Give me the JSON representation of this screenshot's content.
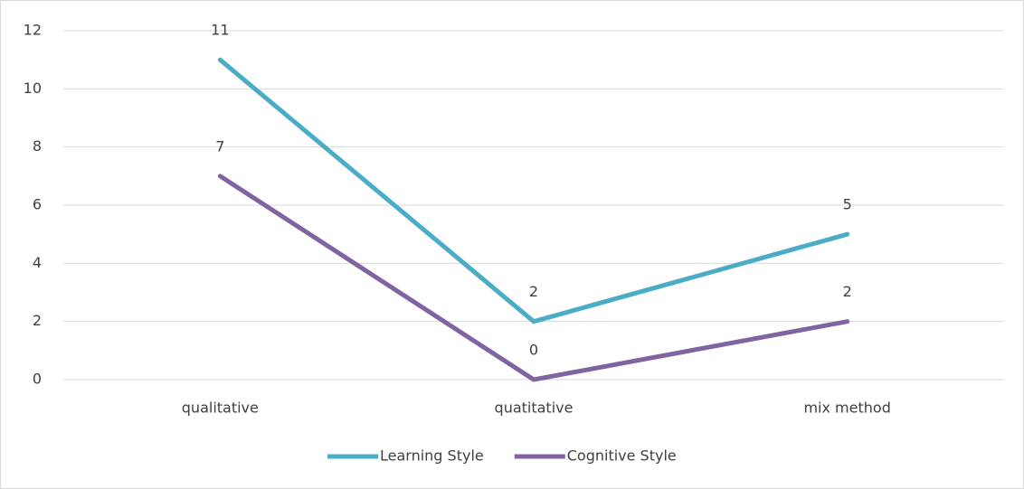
{
  "chart_data": {
    "type": "line",
    "categories": [
      "qualitative",
      "quatitative",
      "mix method"
    ],
    "series": [
      {
        "name": "Learning Style",
        "color": "#4bacc6",
        "values": [
          11,
          2,
          5
        ]
      },
      {
        "name": "Cognitive Style",
        "color": "#8064a2",
        "values": [
          7,
          0,
          2
        ]
      }
    ],
    "ylim": [
      0,
      12
    ],
    "yticks": [
      0,
      2,
      4,
      6,
      8,
      10,
      12
    ],
    "grid": true,
    "legend": "bottom"
  }
}
